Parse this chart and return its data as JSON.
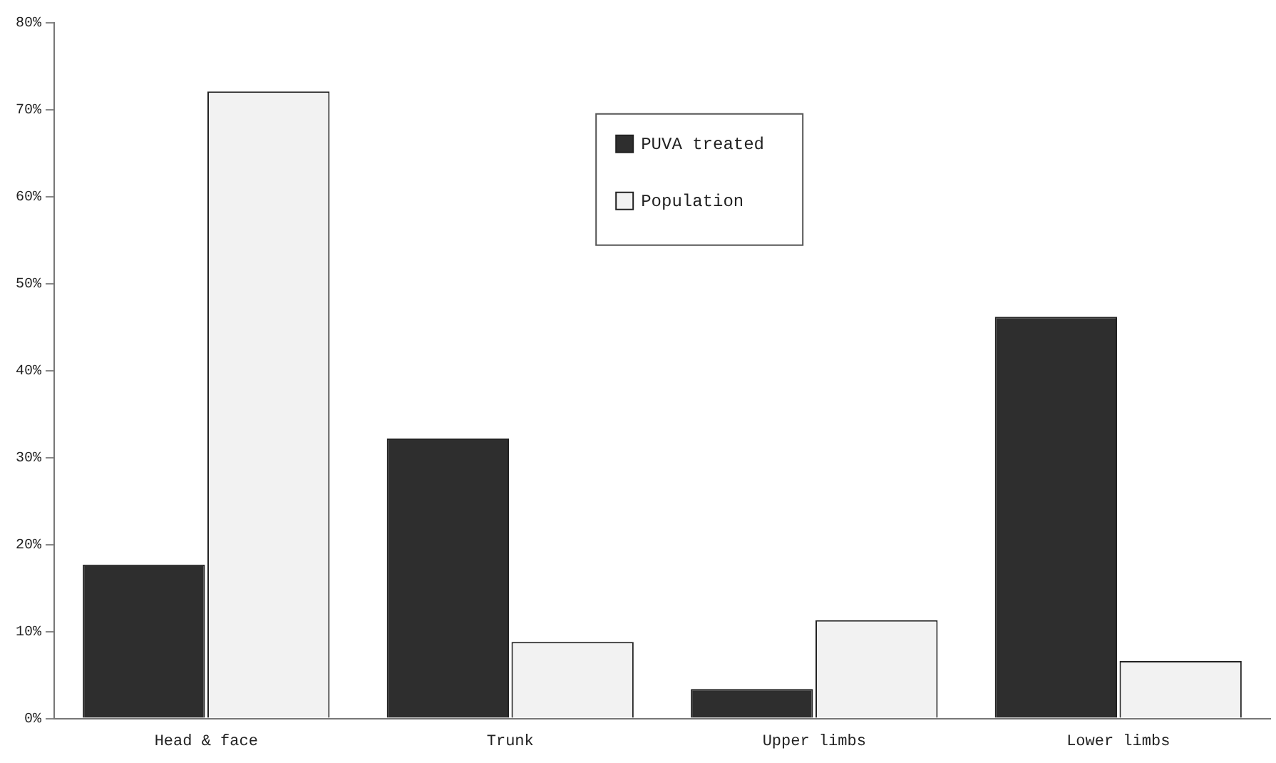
{
  "chart_data": {
    "type": "bar",
    "categories": [
      "Head & face",
      "Trunk",
      "Upper limbs",
      "Lower limbs"
    ],
    "series": [
      {
        "name": "PUVA treated",
        "color": "#2e2e2e",
        "values": [
          17.7,
          32.2,
          3.4,
          46.2
        ]
      },
      {
        "name": "Population",
        "color": "#f2f2f2",
        "values": [
          72.1,
          8.8,
          11.3,
          6.6
        ]
      }
    ],
    "ylim": [
      0,
      80
    ],
    "yticks": [
      {
        "value": 0,
        "label": "0%"
      },
      {
        "value": 10,
        "label": "10%"
      },
      {
        "value": 20,
        "label": "20%"
      },
      {
        "value": 30,
        "label": "30%"
      },
      {
        "value": 40,
        "label": "40%"
      },
      {
        "value": 50,
        "label": "50%"
      },
      {
        "value": 60,
        "label": "60%"
      },
      {
        "value": 70,
        "label": "70%"
      },
      {
        "value": 80,
        "label": "80%"
      }
    ],
    "grid": false,
    "legend": "top"
  }
}
